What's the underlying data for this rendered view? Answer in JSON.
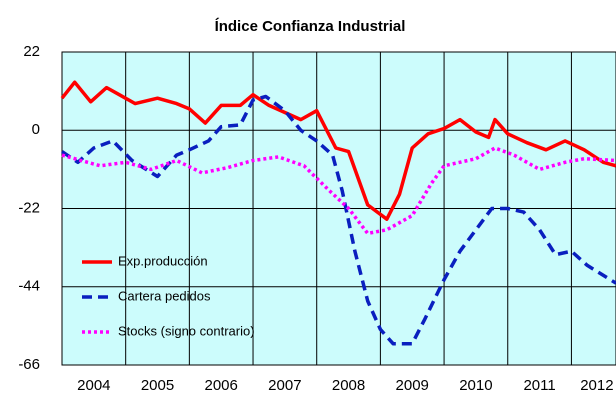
{
  "chart_data": {
    "type": "line",
    "title": "Índice Confianza Industrial",
    "xlim": [
      2004,
      2012.7
    ],
    "xticks": [
      {
        "value": 2004.5,
        "label": "2004"
      },
      {
        "value": 2005.5,
        "label": "2005"
      },
      {
        "value": 2006.5,
        "label": "2006"
      },
      {
        "value": 2007.5,
        "label": "2007"
      },
      {
        "value": 2008.5,
        "label": "2008"
      },
      {
        "value": 2009.5,
        "label": "2009"
      },
      {
        "value": 2010.5,
        "label": "2010"
      },
      {
        "value": 2011.5,
        "label": "2011"
      },
      {
        "value": 2012.4,
        "label": "2012"
      }
    ],
    "xgrid": [
      2005,
      2006,
      2007,
      2008,
      2009,
      2010,
      2011,
      2012
    ],
    "ylim": [
      -66,
      22
    ],
    "yticks": [
      22,
      0,
      -22,
      -44,
      -66
    ],
    "grid": true,
    "legend": "lower left",
    "series": [
      {
        "name": "Exp.producción",
        "color": "#ff0000",
        "style": "solid",
        "x": [
          2004.0,
          2004.2,
          2004.45,
          2004.7,
          2004.9,
          2005.15,
          2005.5,
          2005.8,
          2006.0,
          2006.25,
          2006.5,
          2006.8,
          2007.0,
          2007.25,
          2007.5,
          2007.75,
          2008.0,
          2008.3,
          2008.5,
          2008.8,
          2009.1,
          2009.3,
          2009.5,
          2009.75,
          2010.0,
          2010.25,
          2010.5,
          2010.7,
          2010.8,
          2011.0,
          2011.3,
          2011.6,
          2011.9,
          2012.2,
          2012.5,
          2012.7
        ],
        "values": [
          9,
          13.5,
          8,
          12,
          10,
          7.5,
          9,
          7.5,
          6,
          2,
          7,
          7,
          10,
          7,
          5,
          3,
          5.5,
          -5,
          -6,
          -21,
          -25,
          -18,
          -5,
          -1,
          0.5,
          3,
          -0.5,
          -2,
          3,
          -1,
          -3.5,
          -5.5,
          -3,
          -5.5,
          -9,
          -10
        ]
      },
      {
        "name": "Cartera pedidos",
        "color": "#0a1fbf",
        "style": "dashed",
        "x": [
          2004.0,
          2004.25,
          2004.5,
          2004.8,
          2005.1,
          2005.5,
          2005.8,
          2006.0,
          2006.3,
          2006.5,
          2006.8,
          2007.0,
          2007.2,
          2007.5,
          2007.75,
          2008.0,
          2008.25,
          2008.4,
          2008.6,
          2008.8,
          2009.0,
          2009.2,
          2009.5,
          2009.7,
          2010.0,
          2010.25,
          2010.5,
          2010.75,
          2011.0,
          2011.25,
          2011.5,
          2011.75,
          2012.0,
          2012.25,
          2012.7
        ],
        "values": [
          -6,
          -9,
          -5,
          -3,
          -8.5,
          -13,
          -7,
          -5.5,
          -3,
          1,
          1.5,
          8.5,
          9.5,
          5.5,
          0,
          -3,
          -7,
          -17,
          -34,
          -48,
          -56,
          -60,
          -60,
          -53,
          -42,
          -34,
          -28,
          -22,
          -22,
          -23,
          -28,
          -35,
          -34,
          -38,
          -43
        ]
      },
      {
        "name": "Stocks (signo contrario)",
        "color": "#ff00ff",
        "style": "dotted",
        "x": [
          2004.0,
          2004.3,
          2004.6,
          2005.0,
          2005.4,
          2005.8,
          2006.2,
          2006.6,
          2007.0,
          2007.4,
          2007.8,
          2008.2,
          2008.5,
          2008.8,
          2009.1,
          2009.5,
          2009.8,
          2010.0,
          2010.5,
          2010.8,
          2011.1,
          2011.5,
          2011.9,
          2012.2,
          2012.7
        ],
        "values": [
          -7,
          -8.5,
          -10,
          -9,
          -11,
          -8.5,
          -12,
          -10.5,
          -8.5,
          -7.5,
          -10,
          -17,
          -22,
          -29,
          -28,
          -24,
          -15,
          -10,
          -8,
          -5,
          -7,
          -11,
          -9,
          -8,
          -8.5
        ]
      }
    ]
  }
}
